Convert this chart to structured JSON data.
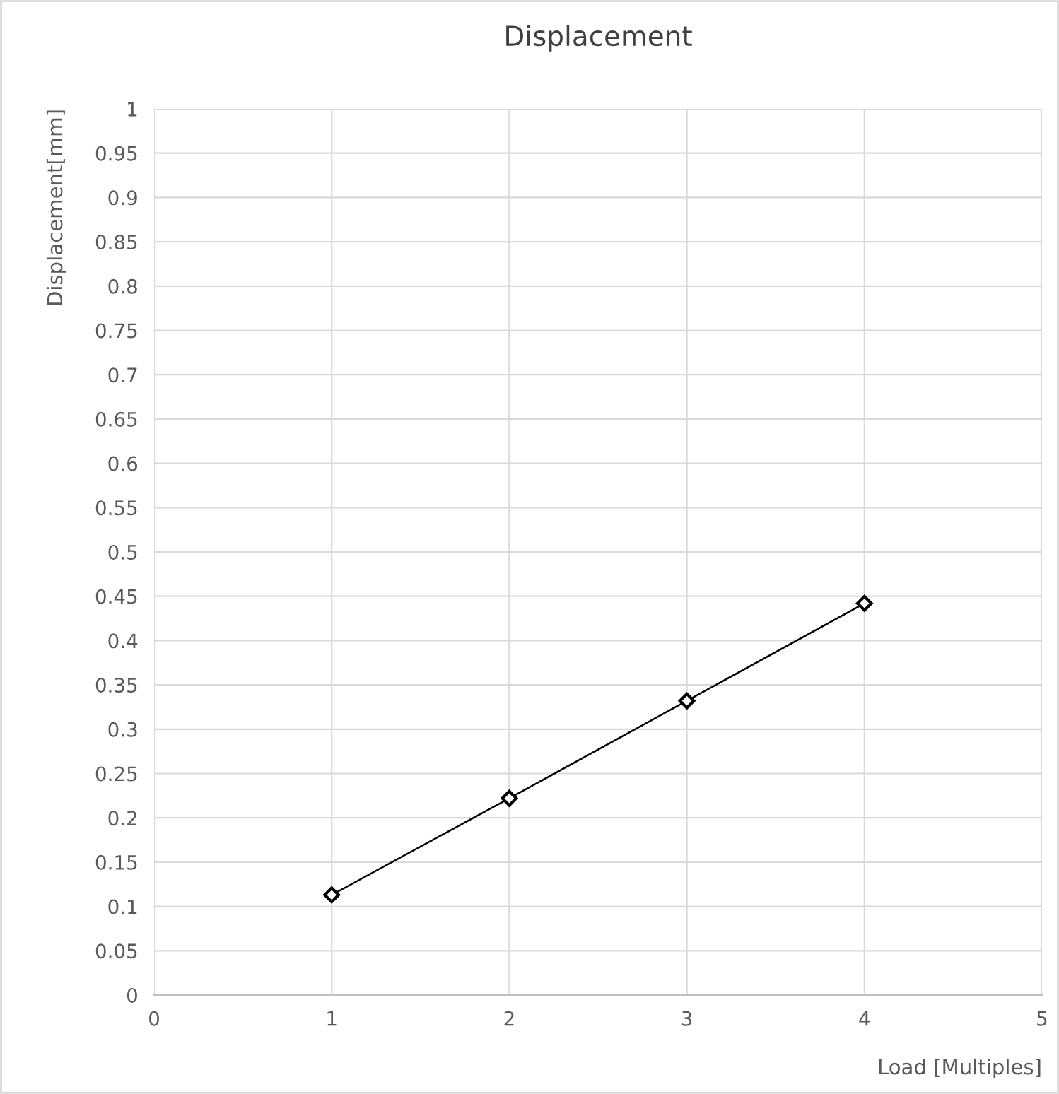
{
  "chart_data": {
    "type": "line",
    "title": "Displacement",
    "xlabel": "Load [Multiples]",
    "ylabel": "Displacement[mm]",
    "x": [
      1,
      2,
      3,
      4
    ],
    "series": [
      {
        "color": "#000000",
        "values": [
          0.113,
          0.222,
          0.332,
          0.442
        ]
      }
    ],
    "xlim": [
      0,
      5
    ],
    "xticks": [
      0,
      1,
      2,
      3,
      4,
      5
    ],
    "ylim": [
      0,
      1
    ],
    "yticks": [
      0,
      0.05,
      0.1,
      0.15,
      0.2,
      0.25,
      0.3,
      0.35,
      0.4,
      0.45,
      0.5,
      0.55,
      0.6,
      0.65,
      0.7,
      0.75,
      0.8,
      0.85,
      0.9,
      0.95,
      1
    ],
    "grid": true,
    "marker": "diamond",
    "line_style": "solid",
    "legend": false
  }
}
